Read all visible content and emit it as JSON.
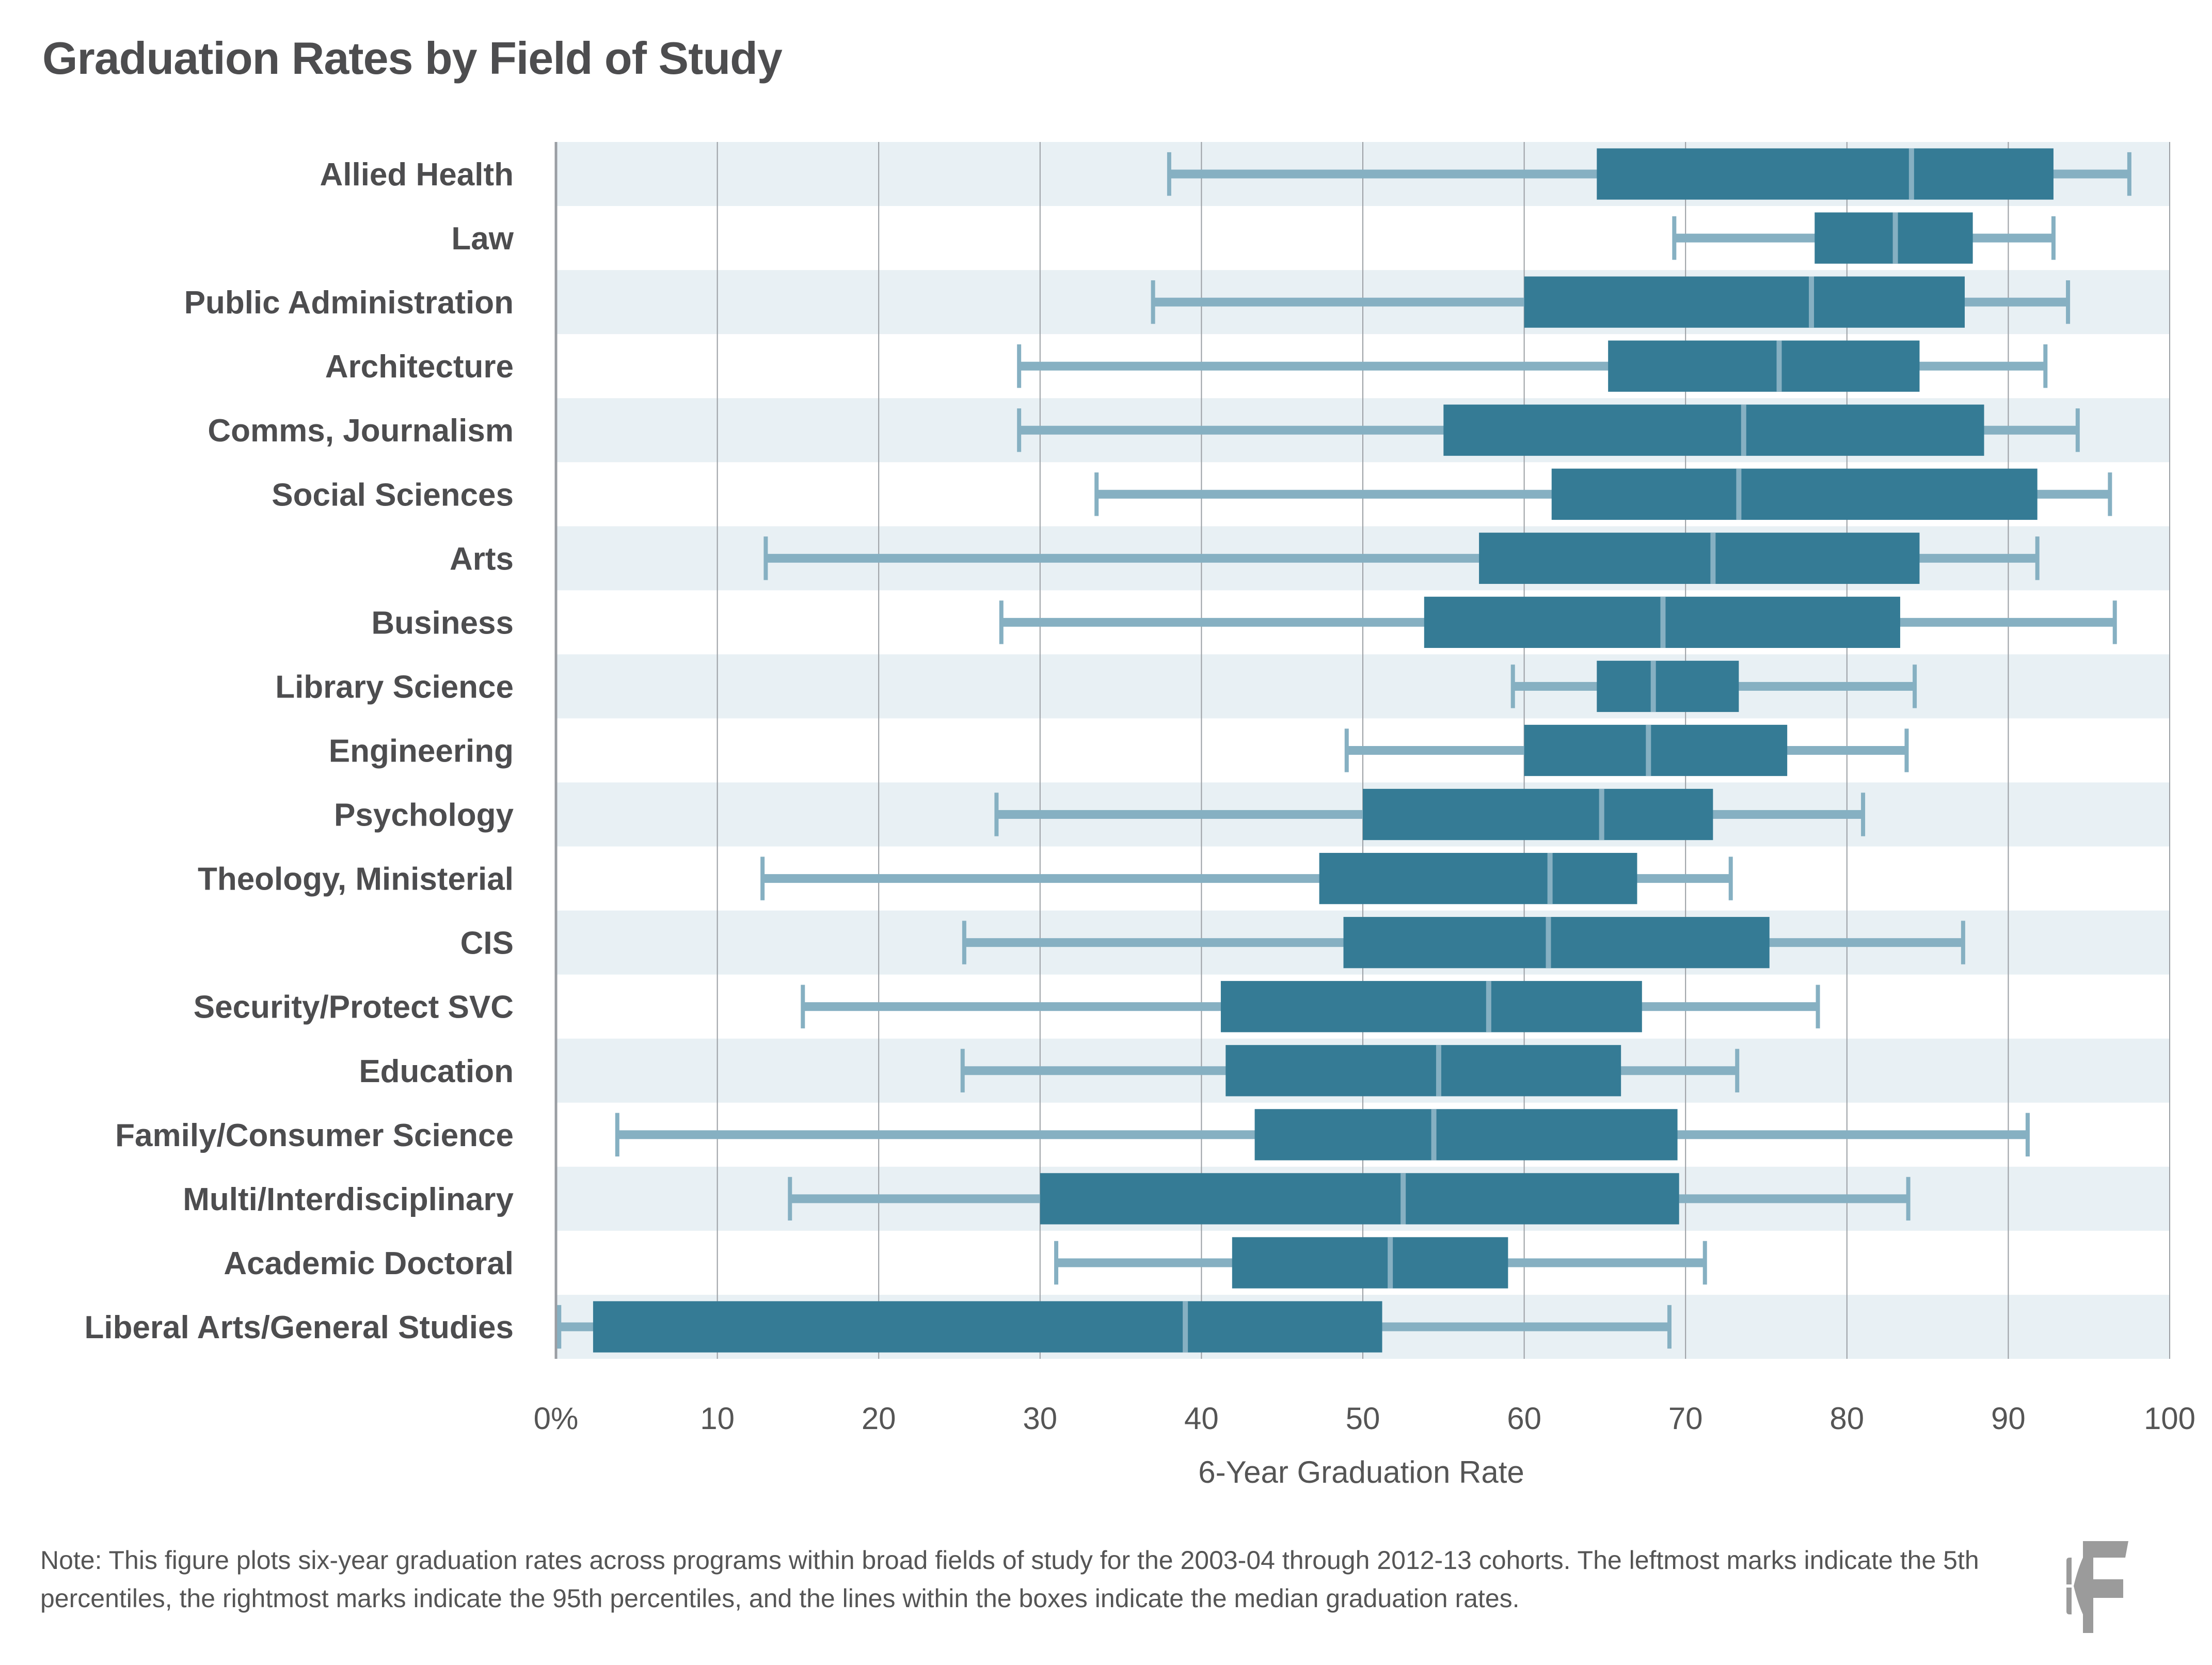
{
  "title": "Graduation Rates by Field of Study",
  "note": "Note: This figure plots six-year graduation rates across programs within broad fields of study for the 2003-04 through 2012-13 cohorts. The leftmost marks indicate the 5th percentiles, the rightmost marks indicate the 95th percentiles, and the lines within the boxes indicate the median graduation rates.",
  "logo": {
    "text": "BF",
    "icon": "bf-logo-icon"
  },
  "colors": {
    "box": "#357b95",
    "whisker": "#86b0c2",
    "band": "#e8f0f4",
    "grid": "#9a9ea3",
    "text": "#4d4d4f"
  },
  "chart_data": {
    "type": "boxplot",
    "orientation": "horizontal",
    "title": "Graduation Rates by Field of Study",
    "xlabel": "6-Year Graduation Rate",
    "ylabel": "",
    "xlim": [
      0,
      100
    ],
    "xticks": [
      0,
      10,
      20,
      30,
      40,
      50,
      60,
      70,
      80,
      90,
      100
    ],
    "xtick_labels": [
      "0%",
      "10",
      "20",
      "30",
      "40",
      "50",
      "60",
      "70",
      "80",
      "90",
      "100"
    ],
    "grid": true,
    "legend": null,
    "stat_definitions": {
      "whisker_low": "5th percentile",
      "whisker_high": "95th percentile",
      "median": "median"
    },
    "categories": [
      "Allied Health",
      "Law",
      "Public Administration",
      "Architecture",
      "Comms, Journalism",
      "Social Sciences",
      "Arts",
      "Business",
      "Library Science",
      "Engineering",
      "Psychology",
      "Theology, Ministerial",
      "CIS",
      "Security/Protect SVC",
      "Education",
      "Family/Consumer Science",
      "Multi/Interdisciplinary",
      "Academic Doctoral",
      "Liberal Arts/General Studies"
    ],
    "series": [
      {
        "name": "Allied Health",
        "p5": 38.0,
        "q1": 64.5,
        "median": 84.0,
        "q3": 92.8,
        "p95": 97.5
      },
      {
        "name": "Law",
        "p5": 69.3,
        "q1": 78.0,
        "median": 83.0,
        "q3": 87.8,
        "p95": 92.8
      },
      {
        "name": "Public Administration",
        "p5": 37.0,
        "q1": 60.0,
        "median": 77.8,
        "q3": 87.3,
        "p95": 93.7
      },
      {
        "name": "Architecture",
        "p5": 28.7,
        "q1": 65.2,
        "median": 75.8,
        "q3": 84.5,
        "p95": 92.3
      },
      {
        "name": "Comms, Journalism",
        "p5": 28.7,
        "q1": 55.0,
        "median": 73.6,
        "q3": 88.5,
        "p95": 94.3
      },
      {
        "name": "Social Sciences",
        "p5": 33.5,
        "q1": 61.7,
        "median": 73.3,
        "q3": 91.8,
        "p95": 96.3
      },
      {
        "name": "Arts",
        "p5": 13.0,
        "q1": 57.2,
        "median": 71.7,
        "q3": 84.5,
        "p95": 91.8
      },
      {
        "name": "Business",
        "p5": 27.6,
        "q1": 53.8,
        "median": 68.6,
        "q3": 83.3,
        "p95": 96.6
      },
      {
        "name": "Library Science",
        "p5": 59.3,
        "q1": 64.5,
        "median": 68.0,
        "q3": 73.3,
        "p95": 84.2
      },
      {
        "name": "Engineering",
        "p5": 49.0,
        "q1": 60.0,
        "median": 67.7,
        "q3": 76.3,
        "p95": 83.7
      },
      {
        "name": "Psychology",
        "p5": 27.3,
        "q1": 50.0,
        "median": 64.8,
        "q3": 71.7,
        "p95": 81.0
      },
      {
        "name": "Theology, Ministerial",
        "p5": 12.8,
        "q1": 47.3,
        "median": 61.6,
        "q3": 67.0,
        "p95": 72.8
      },
      {
        "name": "CIS",
        "p5": 25.3,
        "q1": 48.8,
        "median": 61.5,
        "q3": 75.2,
        "p95": 87.2
      },
      {
        "name": "Security/Protect SVC",
        "p5": 15.3,
        "q1": 41.2,
        "median": 57.8,
        "q3": 67.3,
        "p95": 78.2
      },
      {
        "name": "Education",
        "p5": 25.2,
        "q1": 41.5,
        "median": 54.7,
        "q3": 66.0,
        "p95": 73.2
      },
      {
        "name": "Family/Consumer Science",
        "p5": 3.8,
        "q1": 43.3,
        "median": 54.4,
        "q3": 69.5,
        "p95": 91.2
      },
      {
        "name": "Multi/Interdisciplinary",
        "p5": 14.5,
        "q1": 30.0,
        "median": 52.5,
        "q3": 69.6,
        "p95": 83.8
      },
      {
        "name": "Academic Doctoral",
        "p5": 31.0,
        "q1": 41.9,
        "median": 51.7,
        "q3": 59.0,
        "p95": 71.2
      },
      {
        "name": "Liberal Arts/General Studies",
        "p5": 0.2,
        "q1": 2.3,
        "median": 39.0,
        "q3": 51.2,
        "p95": 69.0
      }
    ]
  }
}
